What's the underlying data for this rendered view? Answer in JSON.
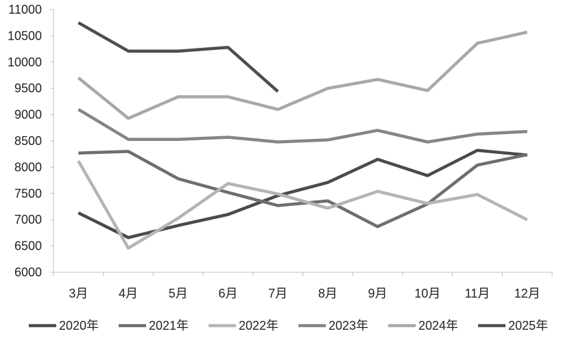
{
  "chart_data": {
    "type": "line",
    "title": "",
    "xlabel": "",
    "ylabel": "",
    "categories": [
      "3月",
      "4月",
      "5月",
      "6月",
      "7月",
      "8月",
      "9月",
      "10月",
      "11月",
      "12月"
    ],
    "ylim": [
      6000,
      11000
    ],
    "yticks": [
      "6000",
      "6500",
      "7000",
      "7500",
      "8000",
      "8500",
      "9000",
      "9500",
      "10000",
      "10500",
      "11000"
    ],
    "grid": false,
    "legend_position": "bottom",
    "series": [
      {
        "name": "2020年",
        "color": "#4a4a4a",
        "values": [
          7130,
          6660,
          6890,
          7100,
          7460,
          7710,
          8150,
          7840,
          8320,
          8230
        ]
      },
      {
        "name": "2021年",
        "color": "#6e6e6e",
        "values": [
          8270,
          8300,
          7780,
          7520,
          7270,
          7360,
          6870,
          7300,
          8040,
          8240
        ]
      },
      {
        "name": "2022年",
        "color": "#b4b4b4",
        "values": [
          8120,
          6460,
          7030,
          7690,
          7490,
          7220,
          7540,
          7310,
          7480,
          7000
        ]
      },
      {
        "name": "2023年",
        "color": "#858585",
        "values": [
          9100,
          8530,
          8530,
          8570,
          8480,
          8520,
          8700,
          8480,
          8630,
          8680
        ]
      },
      {
        "name": "2024年",
        "color": "#a8a8a8",
        "values": [
          9700,
          8930,
          9340,
          9340,
          9100,
          9500,
          9670,
          9460,
          10360,
          10570
        ]
      },
      {
        "name": "2025年",
        "color": "#4e4e4e",
        "values": [
          10750,
          10210,
          10210,
          10280,
          9440,
          null,
          null,
          null,
          null,
          null
        ]
      }
    ]
  }
}
